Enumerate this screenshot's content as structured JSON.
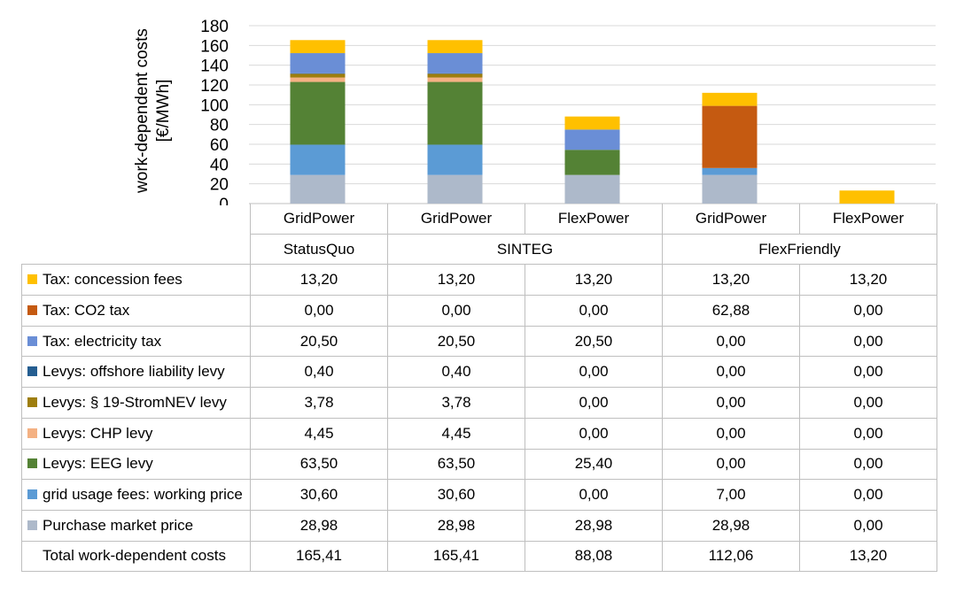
{
  "chart_data": {
    "type": "bar",
    "stacked": true,
    "ylabel": "work-dependent costs [€/MWh]",
    "ylim": [
      0,
      180
    ],
    "yticks": [
      0,
      20,
      40,
      60,
      80,
      100,
      120,
      140,
      160,
      180
    ],
    "grid": true,
    "categories": [
      "GridPower",
      "GridPower",
      "FlexPower",
      "GridPower",
      "FlexPower"
    ],
    "scenarios": [
      {
        "name": "StatusQuo",
        "span": 1
      },
      {
        "name": "SINTEG",
        "span": 2
      },
      {
        "name": "FlexFriendly",
        "span": 2
      }
    ],
    "series": [
      {
        "name": "Tax: concession fees",
        "color": "#FFC000",
        "values": [
          13.2,
          13.2,
          13.2,
          13.2,
          13.2
        ],
        "labels": [
          "13,20",
          "13,20",
          "13,20",
          "13,20",
          "13,20"
        ]
      },
      {
        "name": "Tax: CO2 tax",
        "color": "#C55A11",
        "values": [
          0.0,
          0.0,
          0.0,
          62.88,
          0.0
        ],
        "labels": [
          "0,00",
          "0,00",
          "0,00",
          "62,88",
          "0,00"
        ]
      },
      {
        "name": "Tax: electricity tax",
        "color": "#6A8ED6",
        "values": [
          20.5,
          20.5,
          20.5,
          0.0,
          0.0
        ],
        "labels": [
          "20,50",
          "20,50",
          "20,50",
          "0,00",
          "0,00"
        ]
      },
      {
        "name": "Levys: offshore liability levy",
        "color": "#255E91",
        "values": [
          0.4,
          0.4,
          0.0,
          0.0,
          0.0
        ],
        "labels": [
          "0,40",
          "0,40",
          "0,00",
          "0,00",
          "0,00"
        ]
      },
      {
        "name": "Levys: § 19-StromNEV levy",
        "color": "#9E7E0E",
        "values": [
          3.78,
          3.78,
          0.0,
          0.0,
          0.0
        ],
        "labels": [
          "3,78",
          "3,78",
          "0,00",
          "0,00",
          "0,00"
        ]
      },
      {
        "name": "Levys: CHP levy",
        "color": "#F4B183",
        "values": [
          4.45,
          4.45,
          0.0,
          0.0,
          0.0
        ],
        "labels": [
          "4,45",
          "4,45",
          "0,00",
          "0,00",
          "0,00"
        ]
      },
      {
        "name": "Levys: EEG levy",
        "color": "#548235",
        "values": [
          63.5,
          63.5,
          25.4,
          0.0,
          0.0
        ],
        "labels": [
          "63,50",
          "63,50",
          "25,40",
          "0,00",
          "0,00"
        ]
      },
      {
        "name": "grid usage fees: working price",
        "color": "#5B9BD5",
        "values": [
          30.6,
          30.6,
          0.0,
          7.0,
          0.0
        ],
        "labels": [
          "30,60",
          "30,60",
          "0,00",
          "7,00",
          "0,00"
        ]
      },
      {
        "name": "Purchase market price",
        "color": "#ADB9CA",
        "values": [
          28.98,
          28.98,
          28.98,
          28.98,
          0.0
        ],
        "labels": [
          "28,98",
          "28,98",
          "28,98",
          "28,98",
          "0,00"
        ]
      }
    ],
    "total": {
      "name": "Total work-dependent costs",
      "labels": [
        "165,41",
        "165,41",
        "88,08",
        "112,06",
        "13,20"
      ]
    }
  }
}
